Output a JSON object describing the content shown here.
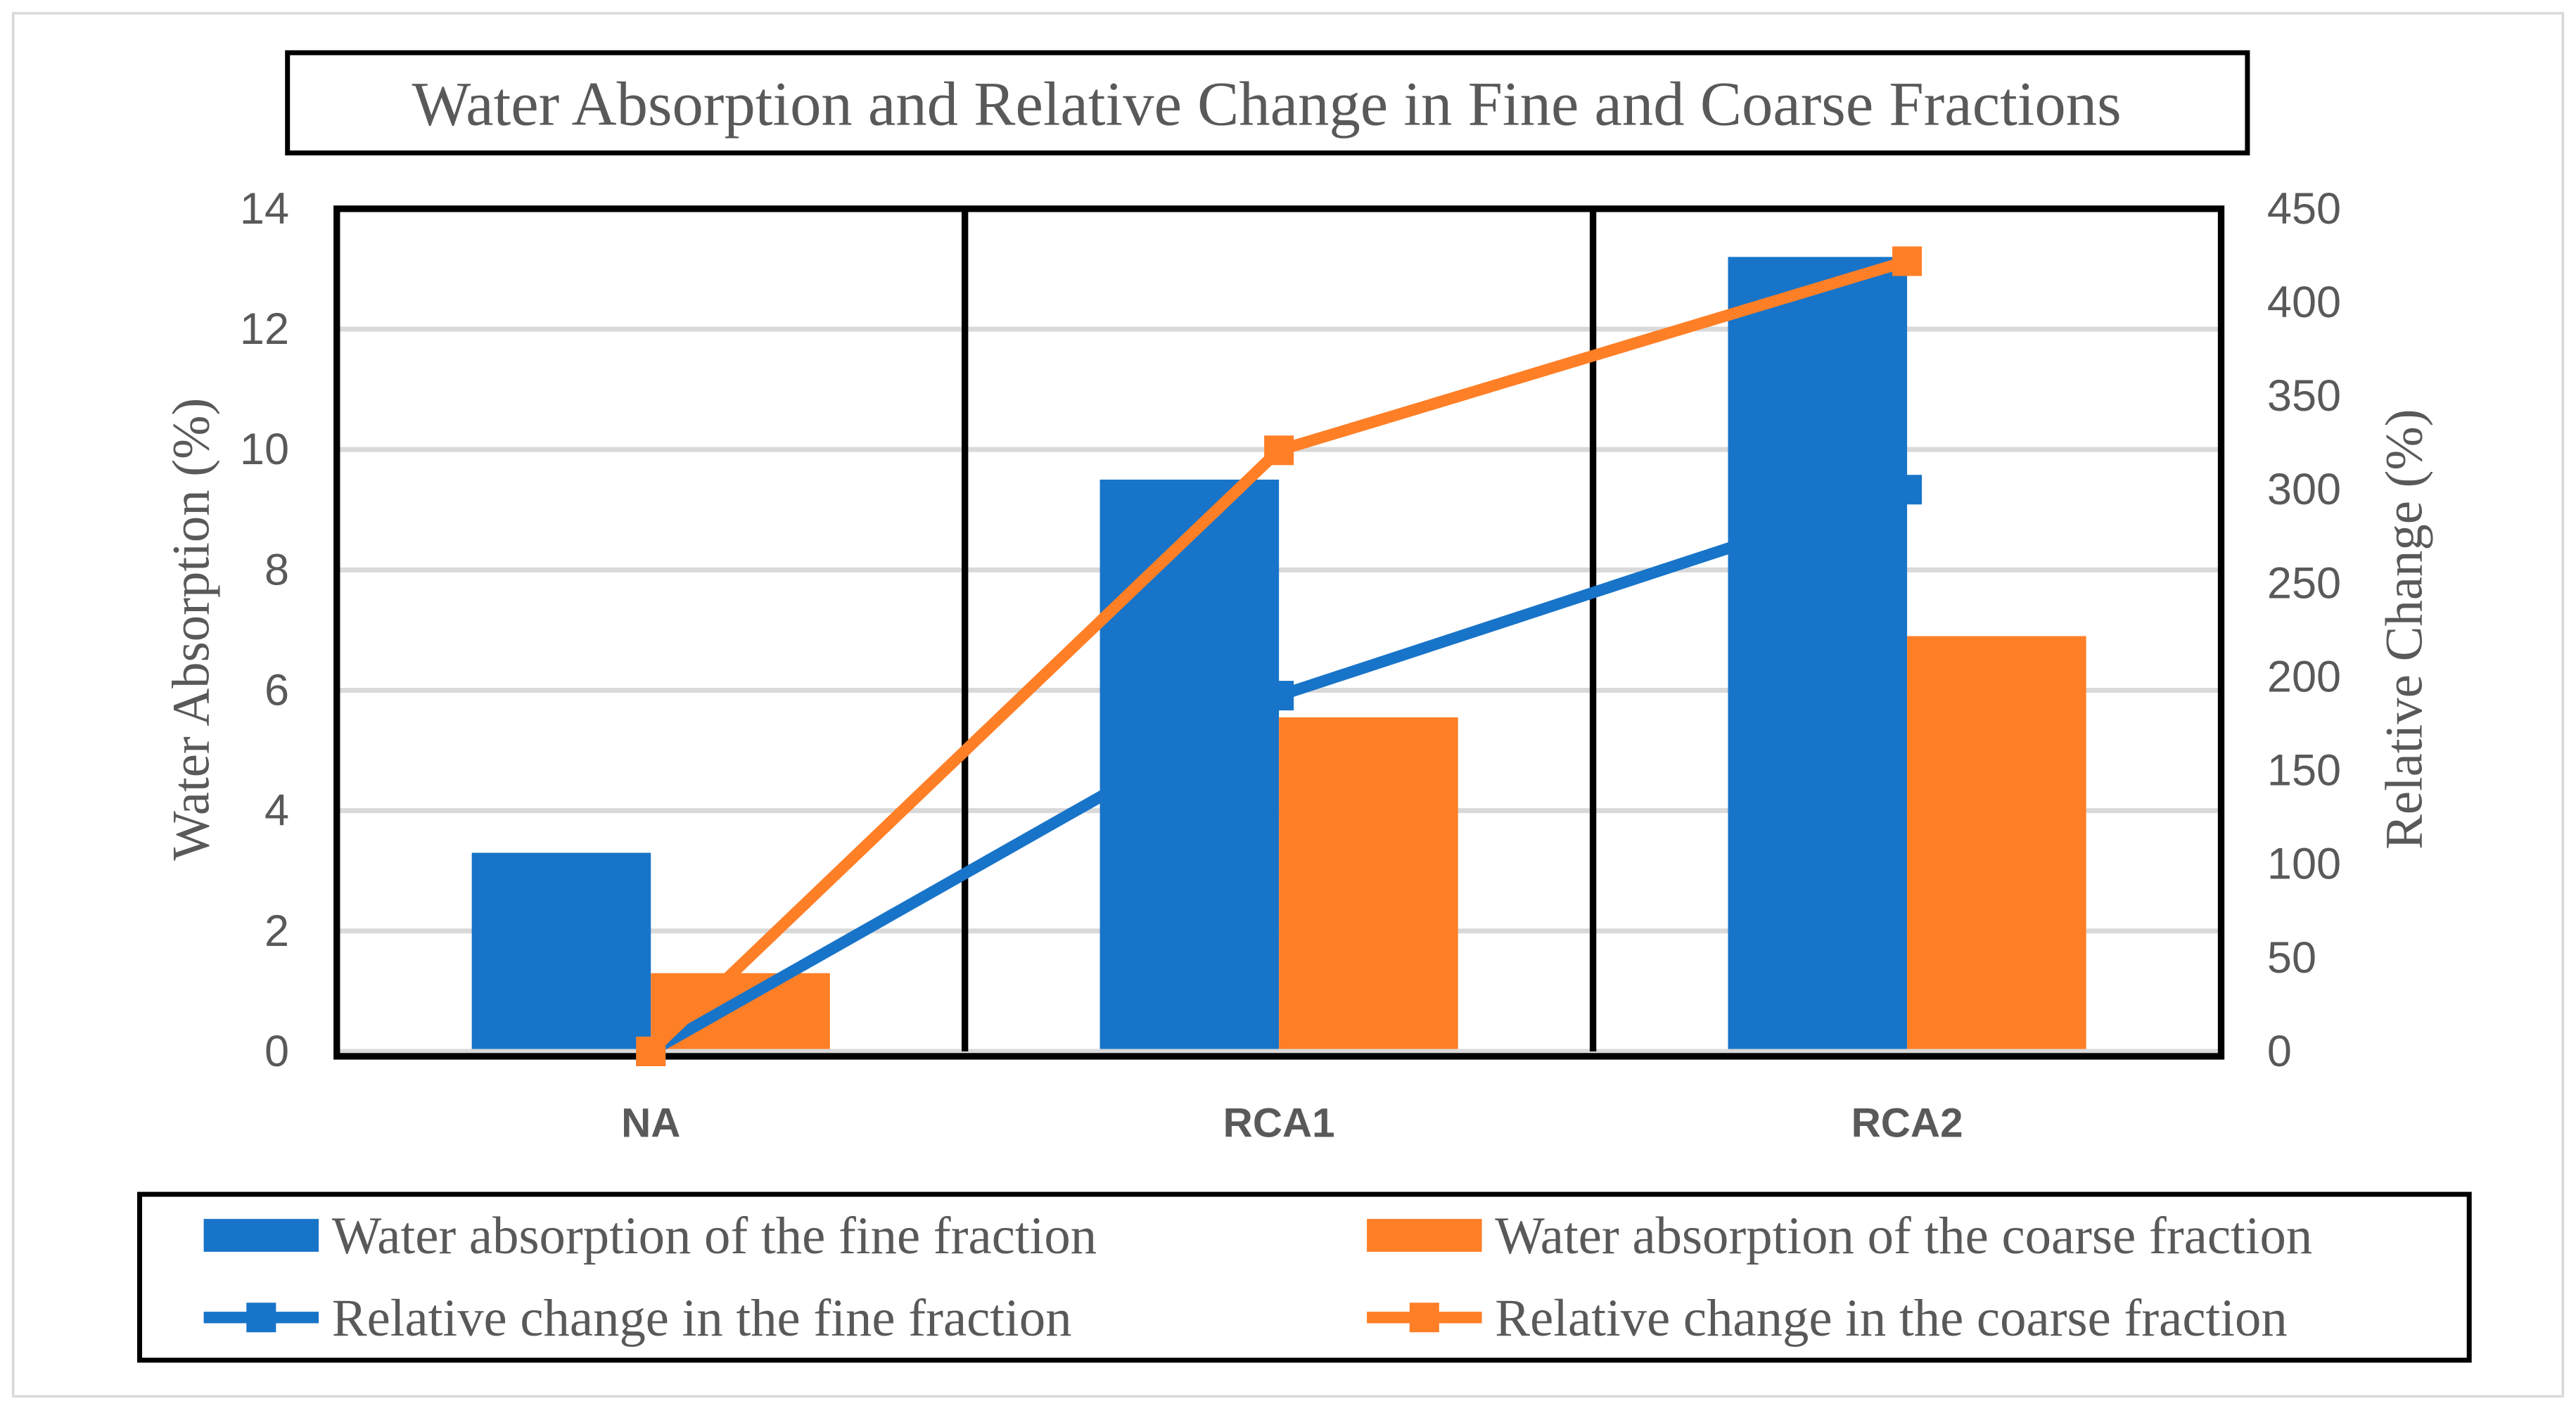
{
  "chart_data": {
    "type": "bar+line",
    "title": "Water Absorption and Relative Change in Fine and Coarse Fractions",
    "categories": [
      "NA",
      "RCA1",
      "RCA2"
    ],
    "ylabel": "Water Absorption (%)",
    "y2label": "Relative Change (%)",
    "ylim": [
      0,
      14
    ],
    "y2lim": [
      0,
      450
    ],
    "yticks": [
      "0",
      "2",
      "4",
      "6",
      "8",
      "10",
      "12",
      "14"
    ],
    "y2ticks": [
      "0",
      "50",
      "100",
      "150",
      "200",
      "250",
      "300",
      "350",
      "400",
      "450"
    ],
    "grid": true,
    "legend_position": "bottom",
    "bar_series": [
      {
        "name": "Water absorption of the fine fraction",
        "values": [
          3.3,
          9.5,
          13.2
        ],
        "color": "#1874C8"
      },
      {
        "name": "Water absorption of the coarse fraction",
        "values": [
          1.3,
          5.55,
          6.9
        ],
        "color": "#FF7F27"
      }
    ],
    "line_series": [
      {
        "name": "Relative change in the fine fraction",
        "values": [
          0,
          190,
          300
        ],
        "color": "#1874C8",
        "axis": "right"
      },
      {
        "name": "Relative change in the coarse fraction",
        "values": [
          0,
          321,
          422
        ],
        "color": "#FF7F27",
        "axis": "right"
      }
    ]
  }
}
